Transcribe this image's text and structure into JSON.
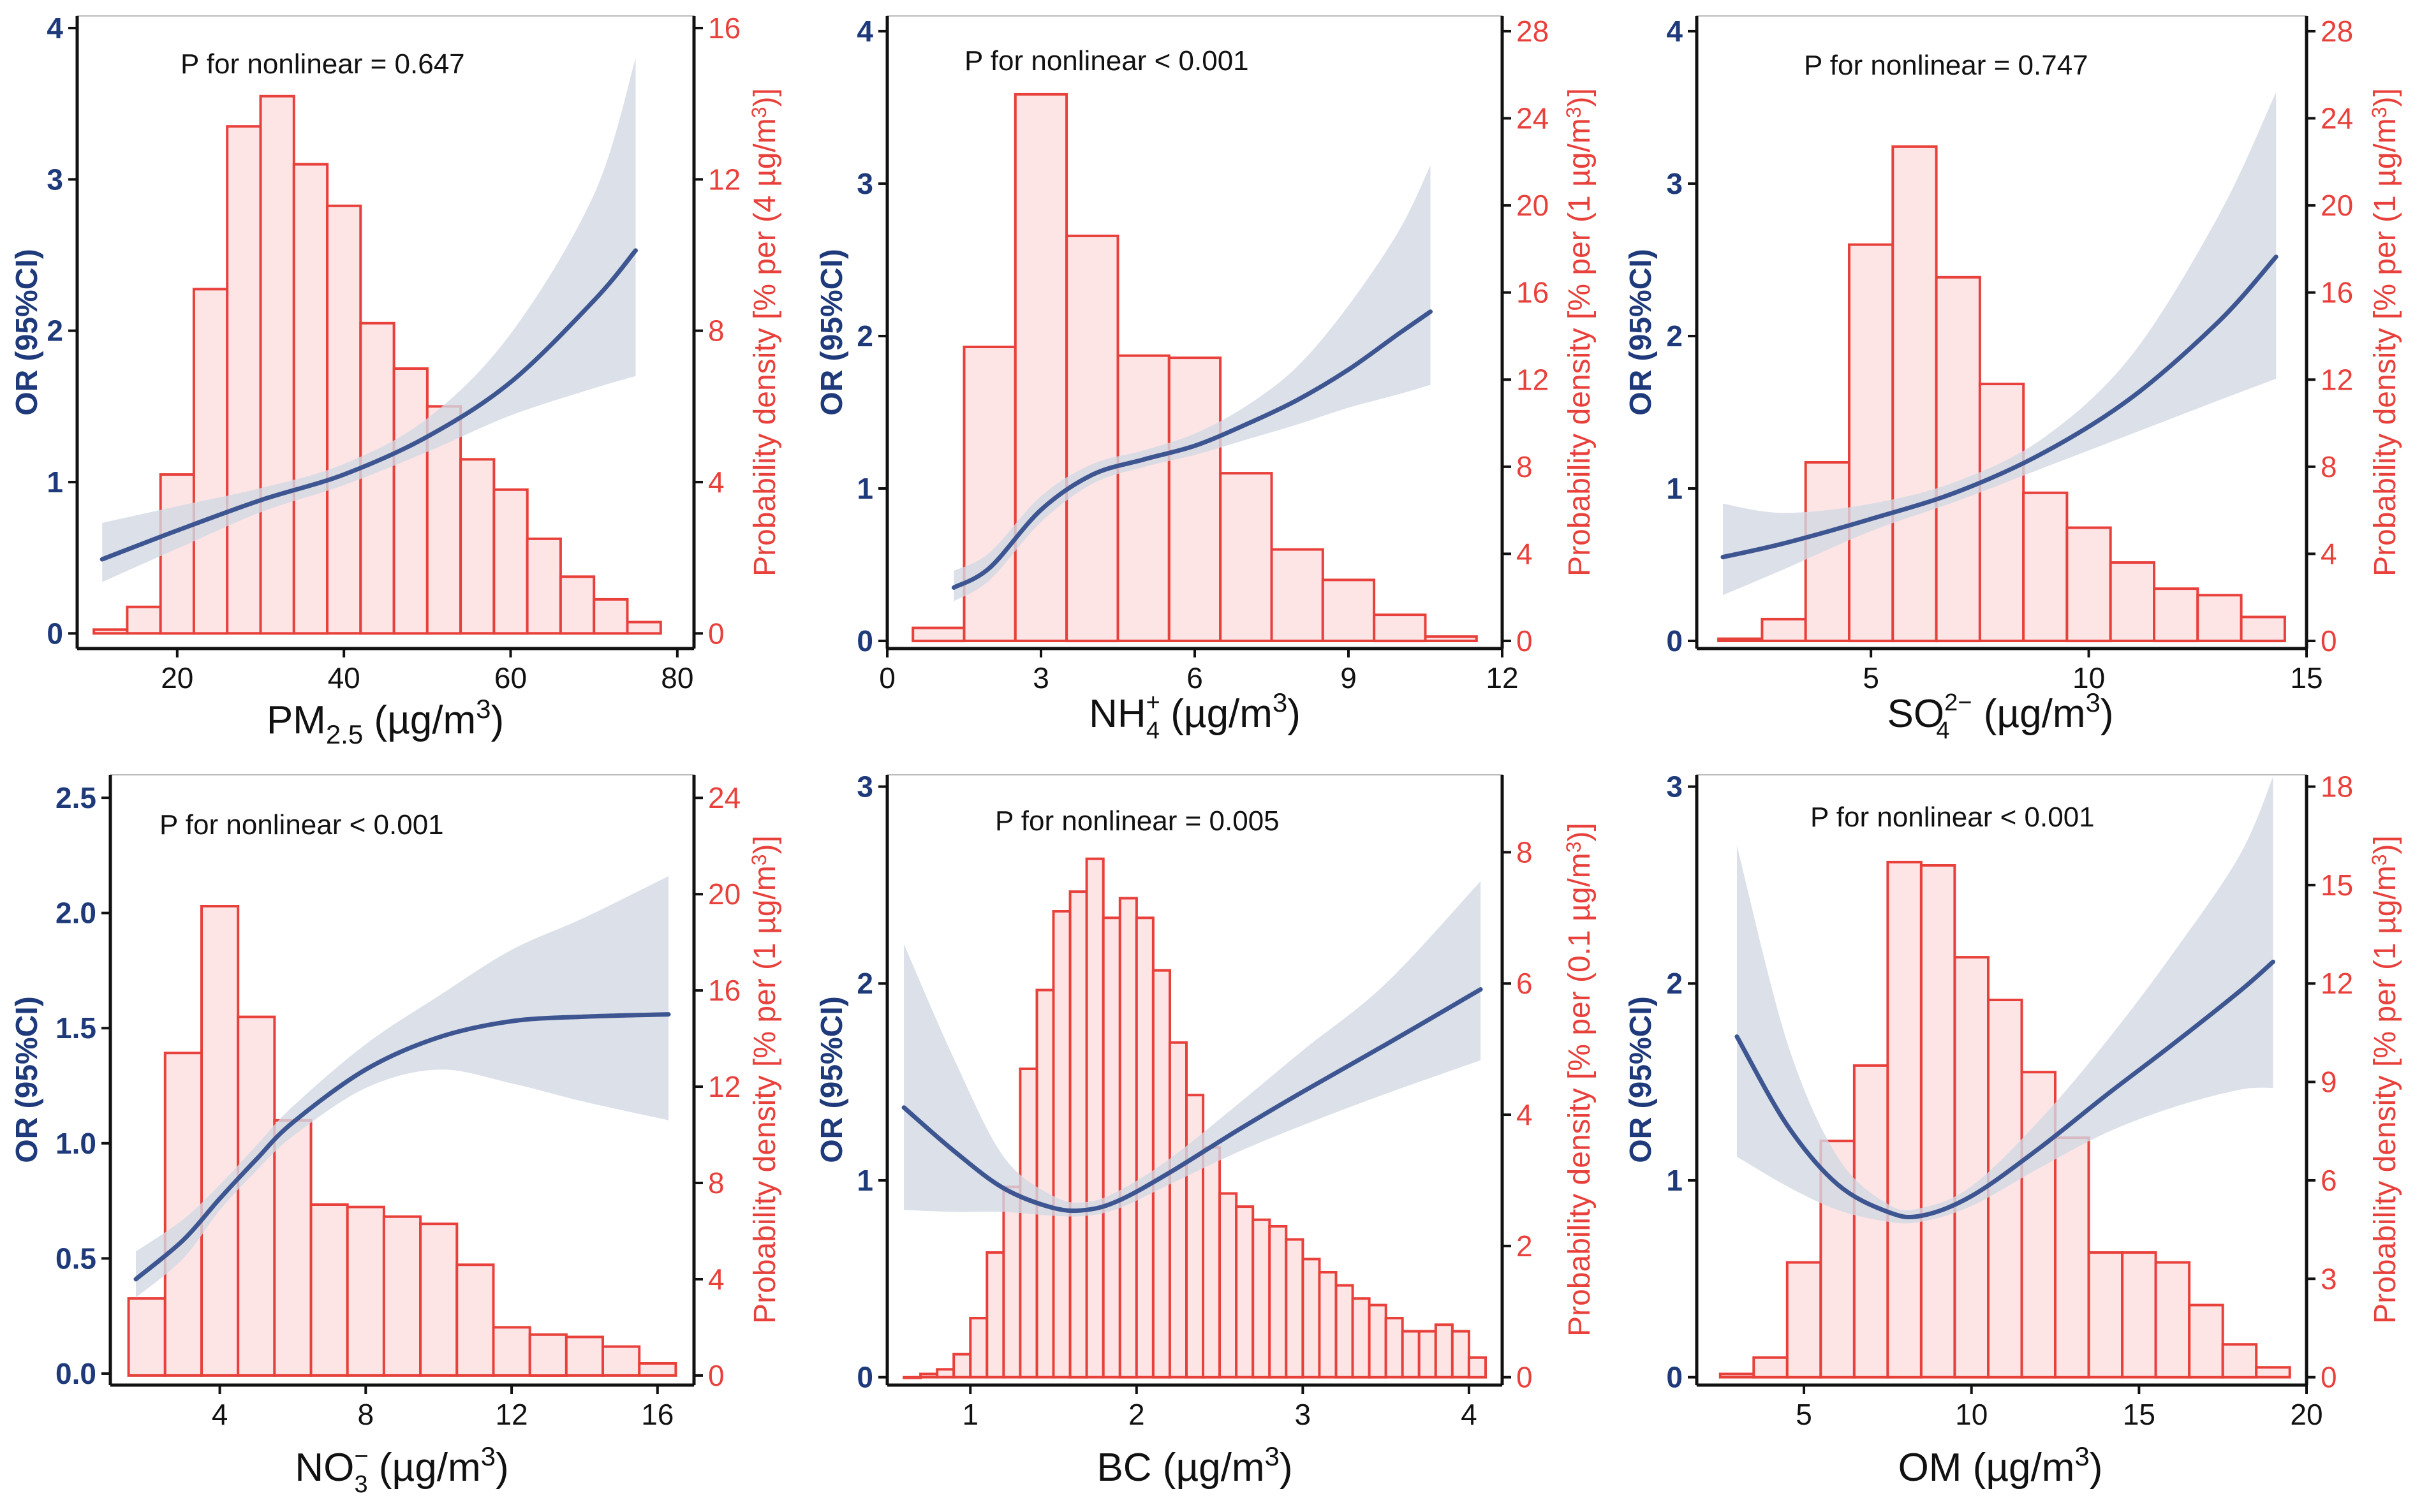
{
  "colors": {
    "or": "#1f3a7a",
    "density": "#e8413c",
    "bar_fill": "#fde5e6",
    "band": "#d2d8e4",
    "curve": "#3d5590"
  },
  "chart_data": [
    {
      "type": "bar",
      "name": "PM2.5",
      "xlabel": {
        "main": "PM",
        "sub": "2.5",
        "sup": "",
        "units": " (µg/m",
        "unit_sup": "3",
        "close": ")"
      },
      "annotation": "P for nonlinear = 0.647",
      "ylabel_left": "OR (95%CI)",
      "ylabel_right": "Probability density [% per (4 µg/m",
      "xlim": [
        8,
        82
      ],
      "xticks": [
        20,
        40,
        60,
        80
      ],
      "ylim_left": [
        -0.1,
        4.08
      ],
      "yticks_left": [
        0,
        1,
        2,
        3,
        4
      ],
      "ylim_right": [
        -0.4,
        16.32
      ],
      "yticks_right": [
        0,
        4,
        8,
        12,
        16
      ],
      "histogram": {
        "bin_edges": [
          10,
          14,
          18,
          22,
          26,
          30,
          34,
          38,
          42,
          46,
          50,
          54,
          58,
          62,
          66,
          70,
          74,
          78
        ],
        "values": [
          0.1,
          0.7,
          4.2,
          9.1,
          13.4,
          14.2,
          12.4,
          11.3,
          8.2,
          7.0,
          6.0,
          4.6,
          3.8,
          2.5,
          1.5,
          0.9,
          0.3
        ]
      },
      "or_curve": {
        "x": [
          11,
          20,
          30,
          40,
          50,
          60,
          70,
          75
        ],
        "or": [
          0.49,
          0.68,
          0.88,
          1.05,
          1.3,
          1.66,
          2.2,
          2.53
        ],
        "lower": [
          0.34,
          0.56,
          0.8,
          0.98,
          1.2,
          1.44,
          1.62,
          1.7
        ],
        "upper": [
          0.73,
          0.84,
          0.96,
          1.12,
          1.42,
          1.98,
          2.9,
          3.8
        ]
      }
    },
    {
      "type": "bar",
      "name": "NH4+",
      "xlabel": {
        "main": "NH",
        "sub": "4",
        "sup": "+",
        "units": " (µg/m",
        "unit_sup": "3",
        "close": ")"
      },
      "annotation": "P for nonlinear < 0.001",
      "ylabel_left": "OR (95%CI)",
      "ylabel_right": "Probability density [% per (1 µg/m",
      "xlim": [
        0,
        12
      ],
      "xticks": [
        0,
        3,
        6,
        9,
        12
      ],
      "ylim_left": [
        -0.05,
        4.1
      ],
      "yticks_left": [
        0,
        1,
        2,
        3,
        4
      ],
      "ylim_right": [
        -0.35,
        28.7
      ],
      "yticks_right": [
        0,
        4,
        8,
        12,
        16,
        20,
        24,
        28
      ],
      "histogram": {
        "bin_edges": [
          0.5,
          1.5,
          2.5,
          3.5,
          4.5,
          5.5,
          6.5,
          7.5,
          8.5,
          9.5,
          10.5,
          11.5
        ],
        "values": [
          0.6,
          13.5,
          25.1,
          18.6,
          13.1,
          13.0,
          7.7,
          4.2,
          2.8,
          1.2,
          0.2
        ]
      },
      "or_curve": {
        "x": [
          1.3,
          2.0,
          3.0,
          4.0,
          5.0,
          6.0,
          7.0,
          8.0,
          9.0,
          10.0,
          10.6
        ],
        "or": [
          0.35,
          0.48,
          0.86,
          1.09,
          1.19,
          1.28,
          1.42,
          1.58,
          1.78,
          2.02,
          2.16
        ],
        "lower": [
          0.26,
          0.4,
          0.78,
          1.03,
          1.14,
          1.22,
          1.32,
          1.42,
          1.53,
          1.62,
          1.68
        ],
        "upper": [
          0.46,
          0.58,
          0.95,
          1.16,
          1.25,
          1.36,
          1.54,
          1.8,
          2.2,
          2.7,
          3.12
        ]
      }
    },
    {
      "type": "bar",
      "name": "SO42-",
      "xlabel": {
        "main": "SO",
        "sub": "4",
        "sup": "2−",
        "units": " (µg/m",
        "unit_sup": "3",
        "close": ")"
      },
      "annotation": "P for nonlinear = 0.747",
      "ylabel_left": "OR (95%CI)",
      "ylabel_right": "Probability density [% per (1 µg/m",
      "xlim": [
        1,
        15
      ],
      "xticks": [
        5,
        10,
        15
      ],
      "ylim_left": [
        -0.05,
        4.1
      ],
      "yticks_left": [
        0,
        1,
        2,
        3,
        4
      ],
      "ylim_right": [
        -0.35,
        28.7
      ],
      "yticks_right": [
        0,
        4,
        8,
        12,
        16,
        20,
        24,
        28
      ],
      "histogram": {
        "bin_edges": [
          1.5,
          2.5,
          3.5,
          4.5,
          5.5,
          6.5,
          7.5,
          8.5,
          9.5,
          10.5,
          11.5,
          12.5,
          13.5,
          14.5
        ],
        "values": [
          0.1,
          1.0,
          8.2,
          18.2,
          22.7,
          16.7,
          11.8,
          6.8,
          5.2,
          3.6,
          2.4,
          2.1,
          1.1
        ]
      },
      "or_curve": {
        "x": [
          1.6,
          3,
          5,
          7,
          9,
          11,
          13,
          14.3
        ],
        "or": [
          0.55,
          0.64,
          0.8,
          0.98,
          1.24,
          1.6,
          2.1,
          2.52
        ],
        "lower": [
          0.3,
          0.47,
          0.72,
          0.92,
          1.14,
          1.36,
          1.58,
          1.72
        ],
        "upper": [
          0.9,
          0.84,
          0.9,
          1.05,
          1.34,
          1.88,
          2.8,
          3.6
        ]
      }
    },
    {
      "type": "bar",
      "name": "NO3-",
      "xlabel": {
        "main": "NO",
        "sub": "3",
        "sup": "−",
        "units": " (µg/m",
        "unit_sup": "3",
        "close": ")"
      },
      "annotation": "P for nonlinear < 0.001",
      "ylabel_left": "OR (95%CI)",
      "ylabel_right": "Probability density [% per (1 µg/m",
      "xlim": [
        1,
        17
      ],
      "xticks": [
        4,
        8,
        12,
        16
      ],
      "ylim_left": [
        -0.05,
        2.6
      ],
      "yticks_left": [
        0.0,
        0.5,
        1.0,
        1.5,
        2.0,
        2.5
      ],
      "ylim_right": [
        -0.4,
        24.96
      ],
      "yticks_right": [
        0,
        4,
        8,
        12,
        16,
        20,
        24
      ],
      "histogram": {
        "bin_edges": [
          1.5,
          2.5,
          3.5,
          4.5,
          5.5,
          6.5,
          7.5,
          8.5,
          9.5,
          10.5,
          11.5,
          12.5,
          13.5,
          14.5,
          15.5,
          16.5
        ],
        "values": [
          3.2,
          13.4,
          19.5,
          14.9,
          10.6,
          7.1,
          7.0,
          6.6,
          6.3,
          4.6,
          2.0,
          1.7,
          1.6,
          1.2,
          0.5
        ]
      },
      "or_curve": {
        "x": [
          1.7,
          3,
          4,
          5,
          6,
          8,
          10,
          12,
          14,
          16.3
        ],
        "or": [
          0.41,
          0.58,
          0.76,
          0.93,
          1.09,
          1.32,
          1.46,
          1.53,
          1.55,
          1.56
        ],
        "lower": [
          0.33,
          0.5,
          0.71,
          0.88,
          1.03,
          1.24,
          1.32,
          1.26,
          1.18,
          1.1
        ],
        "upper": [
          0.53,
          0.67,
          0.82,
          0.99,
          1.16,
          1.43,
          1.64,
          1.84,
          1.98,
          2.16
        ]
      }
    },
    {
      "type": "bar",
      "name": "BC",
      "xlabel": {
        "main": "BC",
        "sub": "",
        "sup": "",
        "units": " (µg/m",
        "unit_sup": "3",
        "close": ")"
      },
      "annotation": "P for nonlinear = 0.005",
      "ylabel_left": "OR (95%CI)",
      "ylabel_right": "Probability density [% per (0.1 µg/m",
      "xlim": [
        0.5,
        4.2
      ],
      "xticks": [
        1,
        2,
        3,
        4
      ],
      "ylim_left": [
        -0.04,
        3.06
      ],
      "yticks_left": [
        0,
        1,
        2,
        3
      ],
      "ylim_right": [
        -0.12,
        9.18
      ],
      "yticks_right": [
        0,
        2,
        4,
        6,
        8
      ],
      "histogram": {
        "bin_edges": [
          0.6,
          0.7,
          0.8,
          0.9,
          1.0,
          1.1,
          1.2,
          1.3,
          1.4,
          1.5,
          1.6,
          1.7,
          1.8,
          1.9,
          2.0,
          2.1,
          2.2,
          2.3,
          2.4,
          2.5,
          2.6,
          2.7,
          2.8,
          2.9,
          3.0,
          3.1,
          3.2,
          3.3,
          3.4,
          3.5,
          3.6,
          3.7,
          3.8,
          3.9,
          4.0,
          4.1
        ],
        "values": [
          0.0,
          0.05,
          0.12,
          0.35,
          0.9,
          1.9,
          2.9,
          4.7,
          5.9,
          7.1,
          7.4,
          7.9,
          7.0,
          7.3,
          7.0,
          6.2,
          5.1,
          4.3,
          3.5,
          2.8,
          2.6,
          2.4,
          2.3,
          2.1,
          1.8,
          1.6,
          1.4,
          1.2,
          1.1,
          0.9,
          0.7,
          0.7,
          0.8,
          0.7,
          0.3
        ]
      },
      "or_curve": {
        "x": [
          0.6,
          0.9,
          1.2,
          1.5,
          1.7,
          1.9,
          2.2,
          2.6,
          3.0,
          3.5,
          4.07
        ],
        "or": [
          1.37,
          1.15,
          0.96,
          0.86,
          0.85,
          0.9,
          1.04,
          1.25,
          1.45,
          1.69,
          1.97
        ],
        "lower": [
          0.85,
          0.84,
          0.84,
          0.82,
          0.82,
          0.86,
          0.98,
          1.14,
          1.28,
          1.44,
          1.61
        ],
        "upper": [
          2.2,
          1.62,
          1.12,
          0.92,
          0.89,
          0.95,
          1.11,
          1.38,
          1.66,
          2.0,
          2.52
        ]
      }
    },
    {
      "type": "bar",
      "name": "OM",
      "xlabel": {
        "main": "OM",
        "sub": "",
        "sup": "",
        "units": " (µg/m",
        "unit_sup": "3",
        "close": ")"
      },
      "annotation": "P for nonlinear < 0.001",
      "ylabel_left": "OR (95%CI)",
      "ylabel_right": "Probability density [% per (1 µg/m",
      "xlim": [
        1.8,
        20
      ],
      "xticks": [
        5,
        10,
        15,
        20
      ],
      "ylim_left": [
        -0.04,
        3.06
      ],
      "yticks_left": [
        0,
        1,
        2,
        3
      ],
      "ylim_right": [
        -0.24,
        18.36
      ],
      "yticks_right": [
        0,
        3,
        6,
        9,
        12,
        15,
        18
      ],
      "histogram": {
        "bin_edges": [
          2.5,
          3.5,
          4.5,
          5.5,
          6.5,
          7.5,
          8.5,
          9.5,
          10.5,
          11.5,
          12.5,
          13.5,
          14.5,
          15.5,
          16.5,
          17.5,
          18.5,
          19.5
        ],
        "values": [
          0.1,
          0.6,
          3.5,
          7.2,
          9.5,
          15.7,
          15.6,
          12.8,
          11.5,
          9.3,
          7.3,
          3.8,
          3.8,
          3.5,
          2.2,
          1.0,
          0.3
        ]
      },
      "or_curve": {
        "x": [
          3.0,
          4.5,
          6,
          7.5,
          8.5,
          10,
          12,
          14,
          16,
          18,
          19.0
        ],
        "or": [
          1.73,
          1.28,
          0.98,
          0.84,
          0.82,
          0.92,
          1.16,
          1.43,
          1.69,
          1.96,
          2.11
        ],
        "lower": [
          1.12,
          0.97,
          0.85,
          0.79,
          0.79,
          0.87,
          1.06,
          1.24,
          1.37,
          1.46,
          1.47
        ],
        "upper": [
          2.7,
          1.7,
          1.12,
          0.88,
          0.86,
          0.97,
          1.3,
          1.7,
          2.15,
          2.65,
          3.05
        ]
      }
    }
  ]
}
